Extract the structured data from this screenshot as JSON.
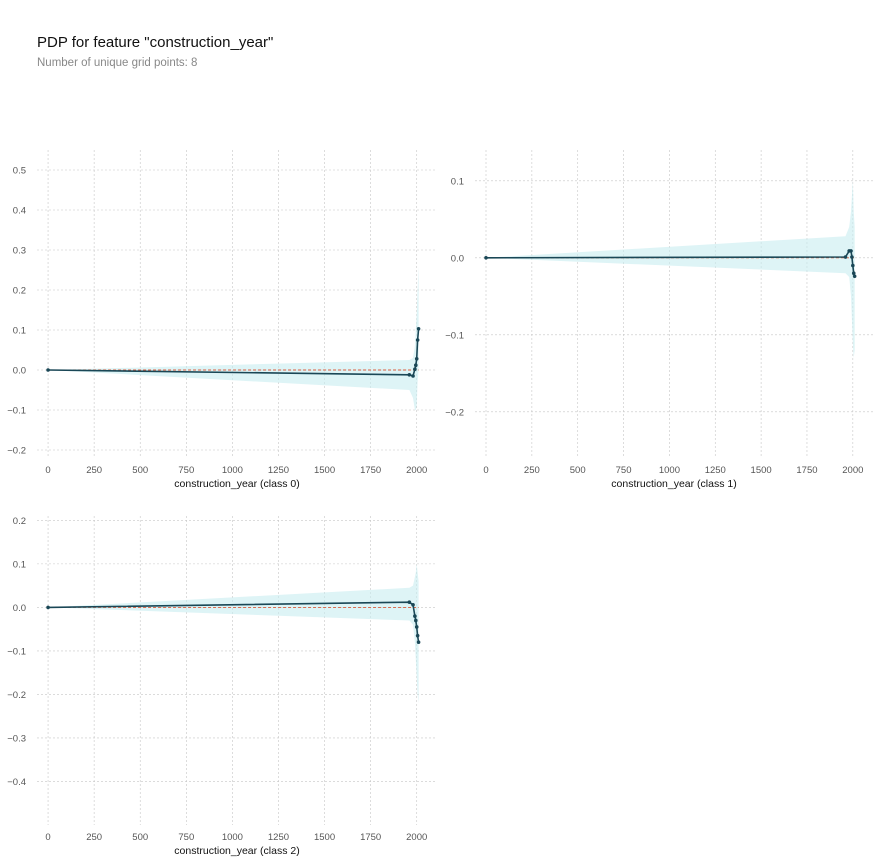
{
  "figure": {
    "title": "PDP for feature \"construction_year\"",
    "subtitle": "Number of unique grid points: 8"
  },
  "colors": {
    "line": "#1a4756",
    "band": "#c8ecf0",
    "baseline": "#d95c3c",
    "grid": "#c6c6c6"
  },
  "chart_data": [
    {
      "type": "line",
      "xlabel": "construction_year (class 0)",
      "xlim": [
        -60,
        2110
      ],
      "ylim": [
        -0.22,
        0.55
      ],
      "xticks": [
        0,
        250,
        500,
        750,
        1000,
        1250,
        1500,
        1750,
        2000
      ],
      "yticks": [
        -0.2,
        -0.1,
        0.0,
        0.1,
        0.2,
        0.3,
        0.4,
        0.5
      ],
      "x": [
        0,
        1960,
        1980,
        1990,
        1995,
        2000,
        2005,
        2010
      ],
      "values": [
        0.0,
        -0.012,
        -0.015,
        0.002,
        0.012,
        0.028,
        0.075,
        0.103
      ],
      "band_upper": [
        0.0,
        0.025,
        0.03,
        0.06,
        0.1,
        0.14,
        0.2,
        0.26
      ],
      "band_lower": [
        0.0,
        -0.05,
        -0.07,
        -0.1,
        -0.1,
        -0.09,
        -0.03,
        0.0
      ]
    },
    {
      "type": "line",
      "xlabel": "construction_year (class 1)",
      "xlim": [
        -60,
        2110
      ],
      "ylim": [
        -0.26,
        0.14
      ],
      "xticks": [
        0,
        250,
        500,
        750,
        1000,
        1250,
        1500,
        1750,
        2000
      ],
      "yticks": [
        -0.2,
        -0.1,
        0.0,
        0.1
      ],
      "x": [
        0,
        1960,
        1980,
        1990,
        1995,
        2000,
        2005,
        2010
      ],
      "values": [
        0.0,
        0.001,
        0.009,
        0.009,
        0.001,
        -0.01,
        -0.02,
        -0.024
      ],
      "band_upper": [
        0.0,
        0.028,
        0.04,
        0.06,
        0.08,
        0.1,
        0.06,
        0.04
      ],
      "band_lower": [
        0.0,
        -0.02,
        -0.025,
        -0.05,
        -0.08,
        -0.11,
        -0.13,
        -0.12
      ]
    },
    {
      "type": "line",
      "xlabel": "construction_year (class 2)",
      "xlim": [
        -60,
        2110
      ],
      "ylim": [
        -0.5,
        0.21
      ],
      "xticks": [
        0,
        250,
        500,
        750,
        1000,
        1250,
        1500,
        1750,
        2000
      ],
      "yticks": [
        -0.4,
        -0.3,
        -0.2,
        -0.1,
        0.0,
        0.1,
        0.2
      ],
      "x": [
        0,
        1960,
        1980,
        1990,
        1995,
        2000,
        2005,
        2010
      ],
      "values": [
        0.0,
        0.012,
        0.006,
        -0.02,
        -0.03,
        -0.045,
        -0.065,
        -0.08
      ],
      "band_upper": [
        0.0,
        0.045,
        0.05,
        0.07,
        0.08,
        0.1,
        0.08,
        0.06
      ],
      "band_lower": [
        0.0,
        -0.03,
        -0.04,
        -0.08,
        -0.12,
        -0.16,
        -0.2,
        -0.22
      ]
    }
  ]
}
